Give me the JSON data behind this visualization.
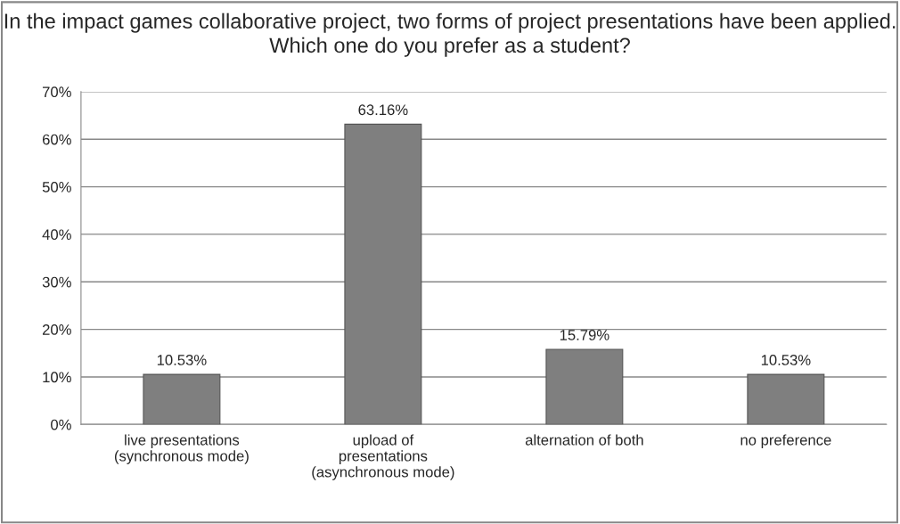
{
  "chart_data": {
    "type": "bar",
    "title": "In the impact games collaborative project, two forms of project presentations have been applied. Which one do you prefer as a student?",
    "categories": [
      "live presentations\n(synchronous mode)",
      "upload of\npresentations\n(asynchronous mode)",
      "alternation of both",
      "no preference"
    ],
    "values": [
      10.53,
      63.16,
      15.79,
      10.53
    ],
    "color": "#7f7f7f",
    "value_labels": [
      "10.53%",
      "63.16%",
      "15.79%",
      "10.53%"
    ],
    "ylim": [
      0,
      70
    ],
    "yticks": [
      {
        "value": 0,
        "label": "0%"
      },
      {
        "value": 10,
        "label": "10%"
      },
      {
        "value": 20,
        "label": "20%"
      },
      {
        "value": 30,
        "label": "30%"
      },
      {
        "value": 40,
        "label": "40%"
      },
      {
        "value": 50,
        "label": "50%"
      },
      {
        "value": 60,
        "label": "60%"
      },
      {
        "value": 70,
        "label": "70%"
      }
    ],
    "grid": "y",
    "legend": false
  }
}
